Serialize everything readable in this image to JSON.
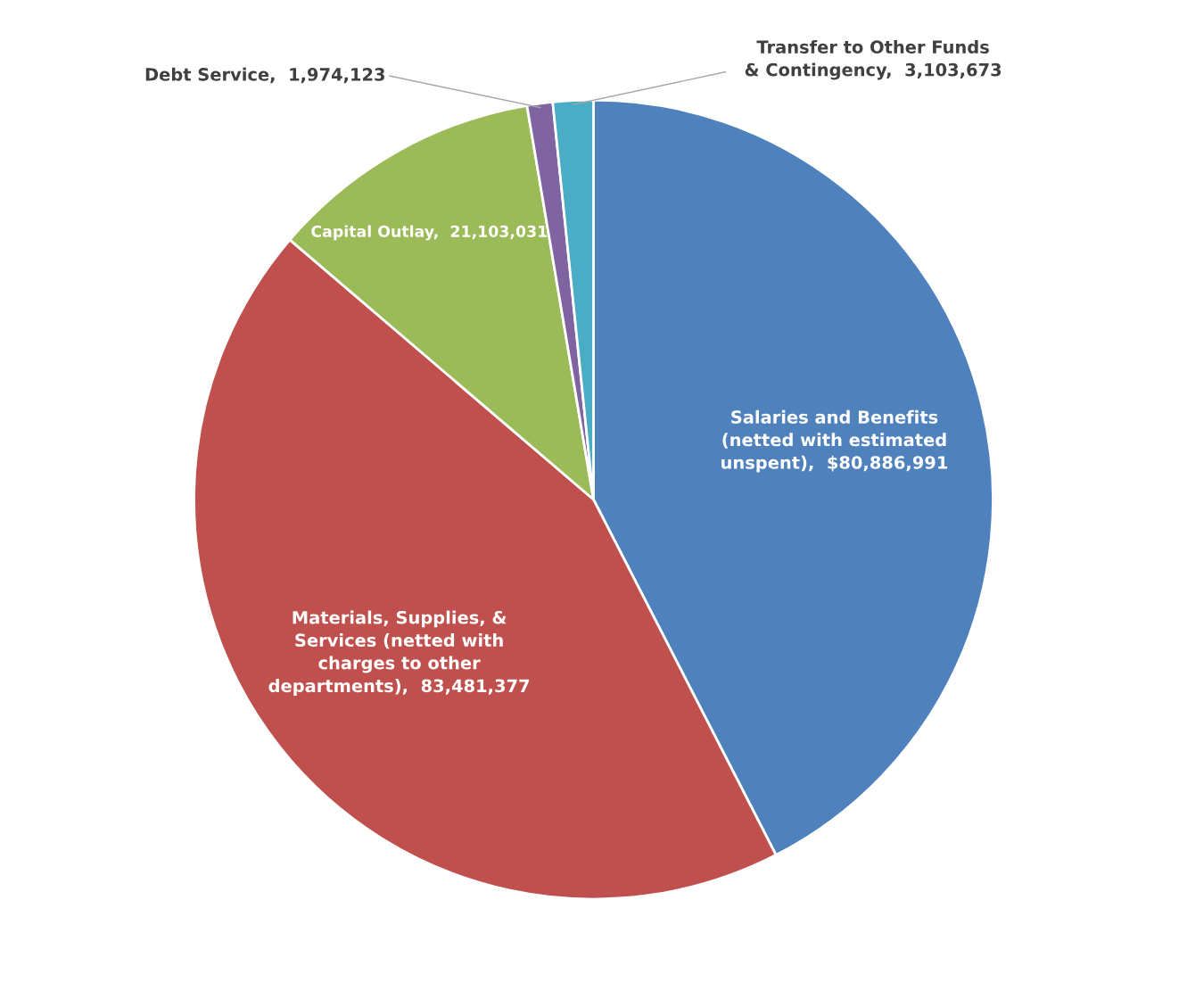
{
  "chart_data": {
    "type": "pie",
    "categories": [
      "Salaries and Benefits\n(netted with estimated\nunspent)",
      "Materials, Supplies, &\nServices (netted with\ncharges to other\ndepartments)",
      "Capital Outlay",
      "Debt Service",
      "Transfer to Other Funds\n& Contingency"
    ],
    "values": [
      80886991,
      83481377,
      21103031,
      1974123,
      3103673
    ],
    "value_labels": [
      "$80,886,991",
      "83,481,377",
      "21,103,031",
      "1,974,123",
      "3,103,673"
    ],
    "colors": [
      "#4f81bd",
      "#c0504d",
      "#9bbb59",
      "#8064a2",
      "#4bacc6"
    ]
  }
}
